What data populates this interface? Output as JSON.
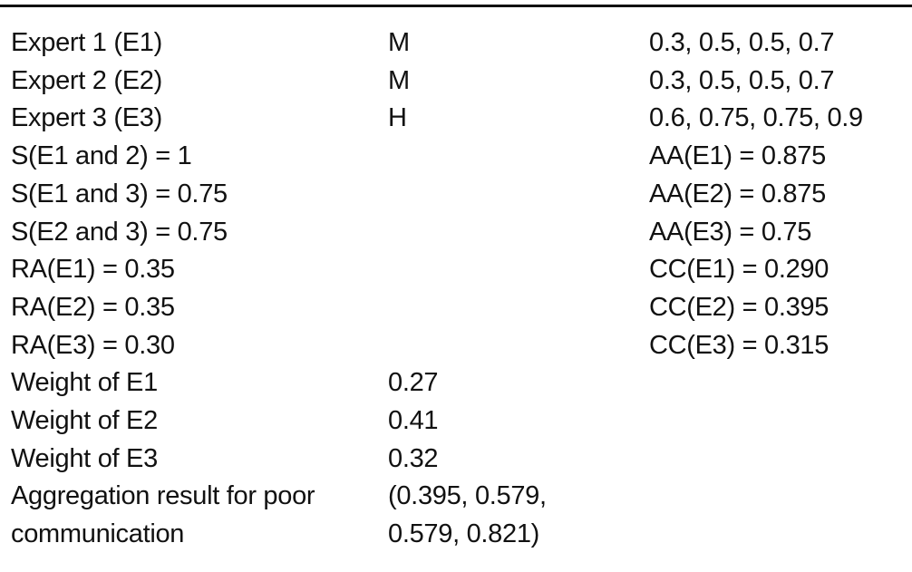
{
  "rows": [
    [
      "Expert 1 (E1)",
      "M",
      "0.3, 0.5, 0.5, 0.7"
    ],
    [
      "Expert 2 (E2)",
      "M",
      "0.3, 0.5, 0.5, 0.7"
    ],
    [
      "Expert 3 (E3)",
      "H",
      "0.6, 0.75, 0.75, 0.9"
    ],
    [
      "S(E1 and 2) = 1",
      "",
      "AA(E1) = 0.875"
    ],
    [
      "S(E1 and 3) = 0.75",
      "",
      "AA(E2) = 0.875"
    ],
    [
      "S(E2 and 3) = 0.75",
      "",
      "AA(E3) = 0.75"
    ],
    [
      "RA(E1) = 0.35",
      "",
      "CC(E1) = 0.290"
    ],
    [
      "RA(E2) = 0.35",
      "",
      "CC(E2) = 0.395"
    ],
    [
      "RA(E3) = 0.30",
      "",
      "CC(E3) = 0.315"
    ],
    [
      "Weight of E1",
      "0.27",
      ""
    ],
    [
      "Weight of E2",
      "0.41",
      ""
    ],
    [
      "Weight of E3",
      "0.32",
      ""
    ],
    [
      "Aggregation result for poor communication",
      "(0.395, 0.579, 0.579, 0.821)",
      ""
    ]
  ]
}
